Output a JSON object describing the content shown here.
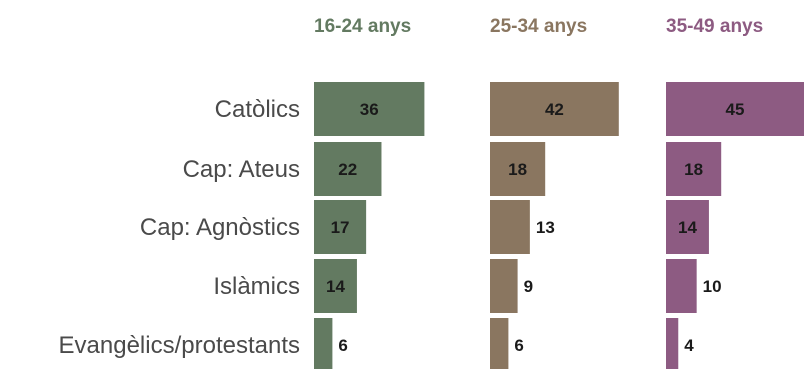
{
  "chart_data": {
    "type": "bar",
    "orientation": "horizontal",
    "layout": "small-multiples",
    "categories": [
      "Catòlics",
      "Cap: Ateus",
      "Cap: Agnòstics",
      "Islàmics",
      "Evangèlics/protestants"
    ],
    "series": [
      {
        "name": "16-24 anys",
        "color": "#637a61",
        "values": [
          36,
          22,
          17,
          14,
          6
        ]
      },
      {
        "name": "25-34 anys",
        "color": "#8a7660",
        "values": [
          42,
          18,
          13,
          9,
          6
        ]
      },
      {
        "name": "35-49 anys",
        "color": "#8d5b82",
        "values": [
          45,
          18,
          14,
          10,
          4
        ]
      }
    ],
    "xlim": [
      0,
      45
    ],
    "grid": false,
    "legend": "none"
  }
}
